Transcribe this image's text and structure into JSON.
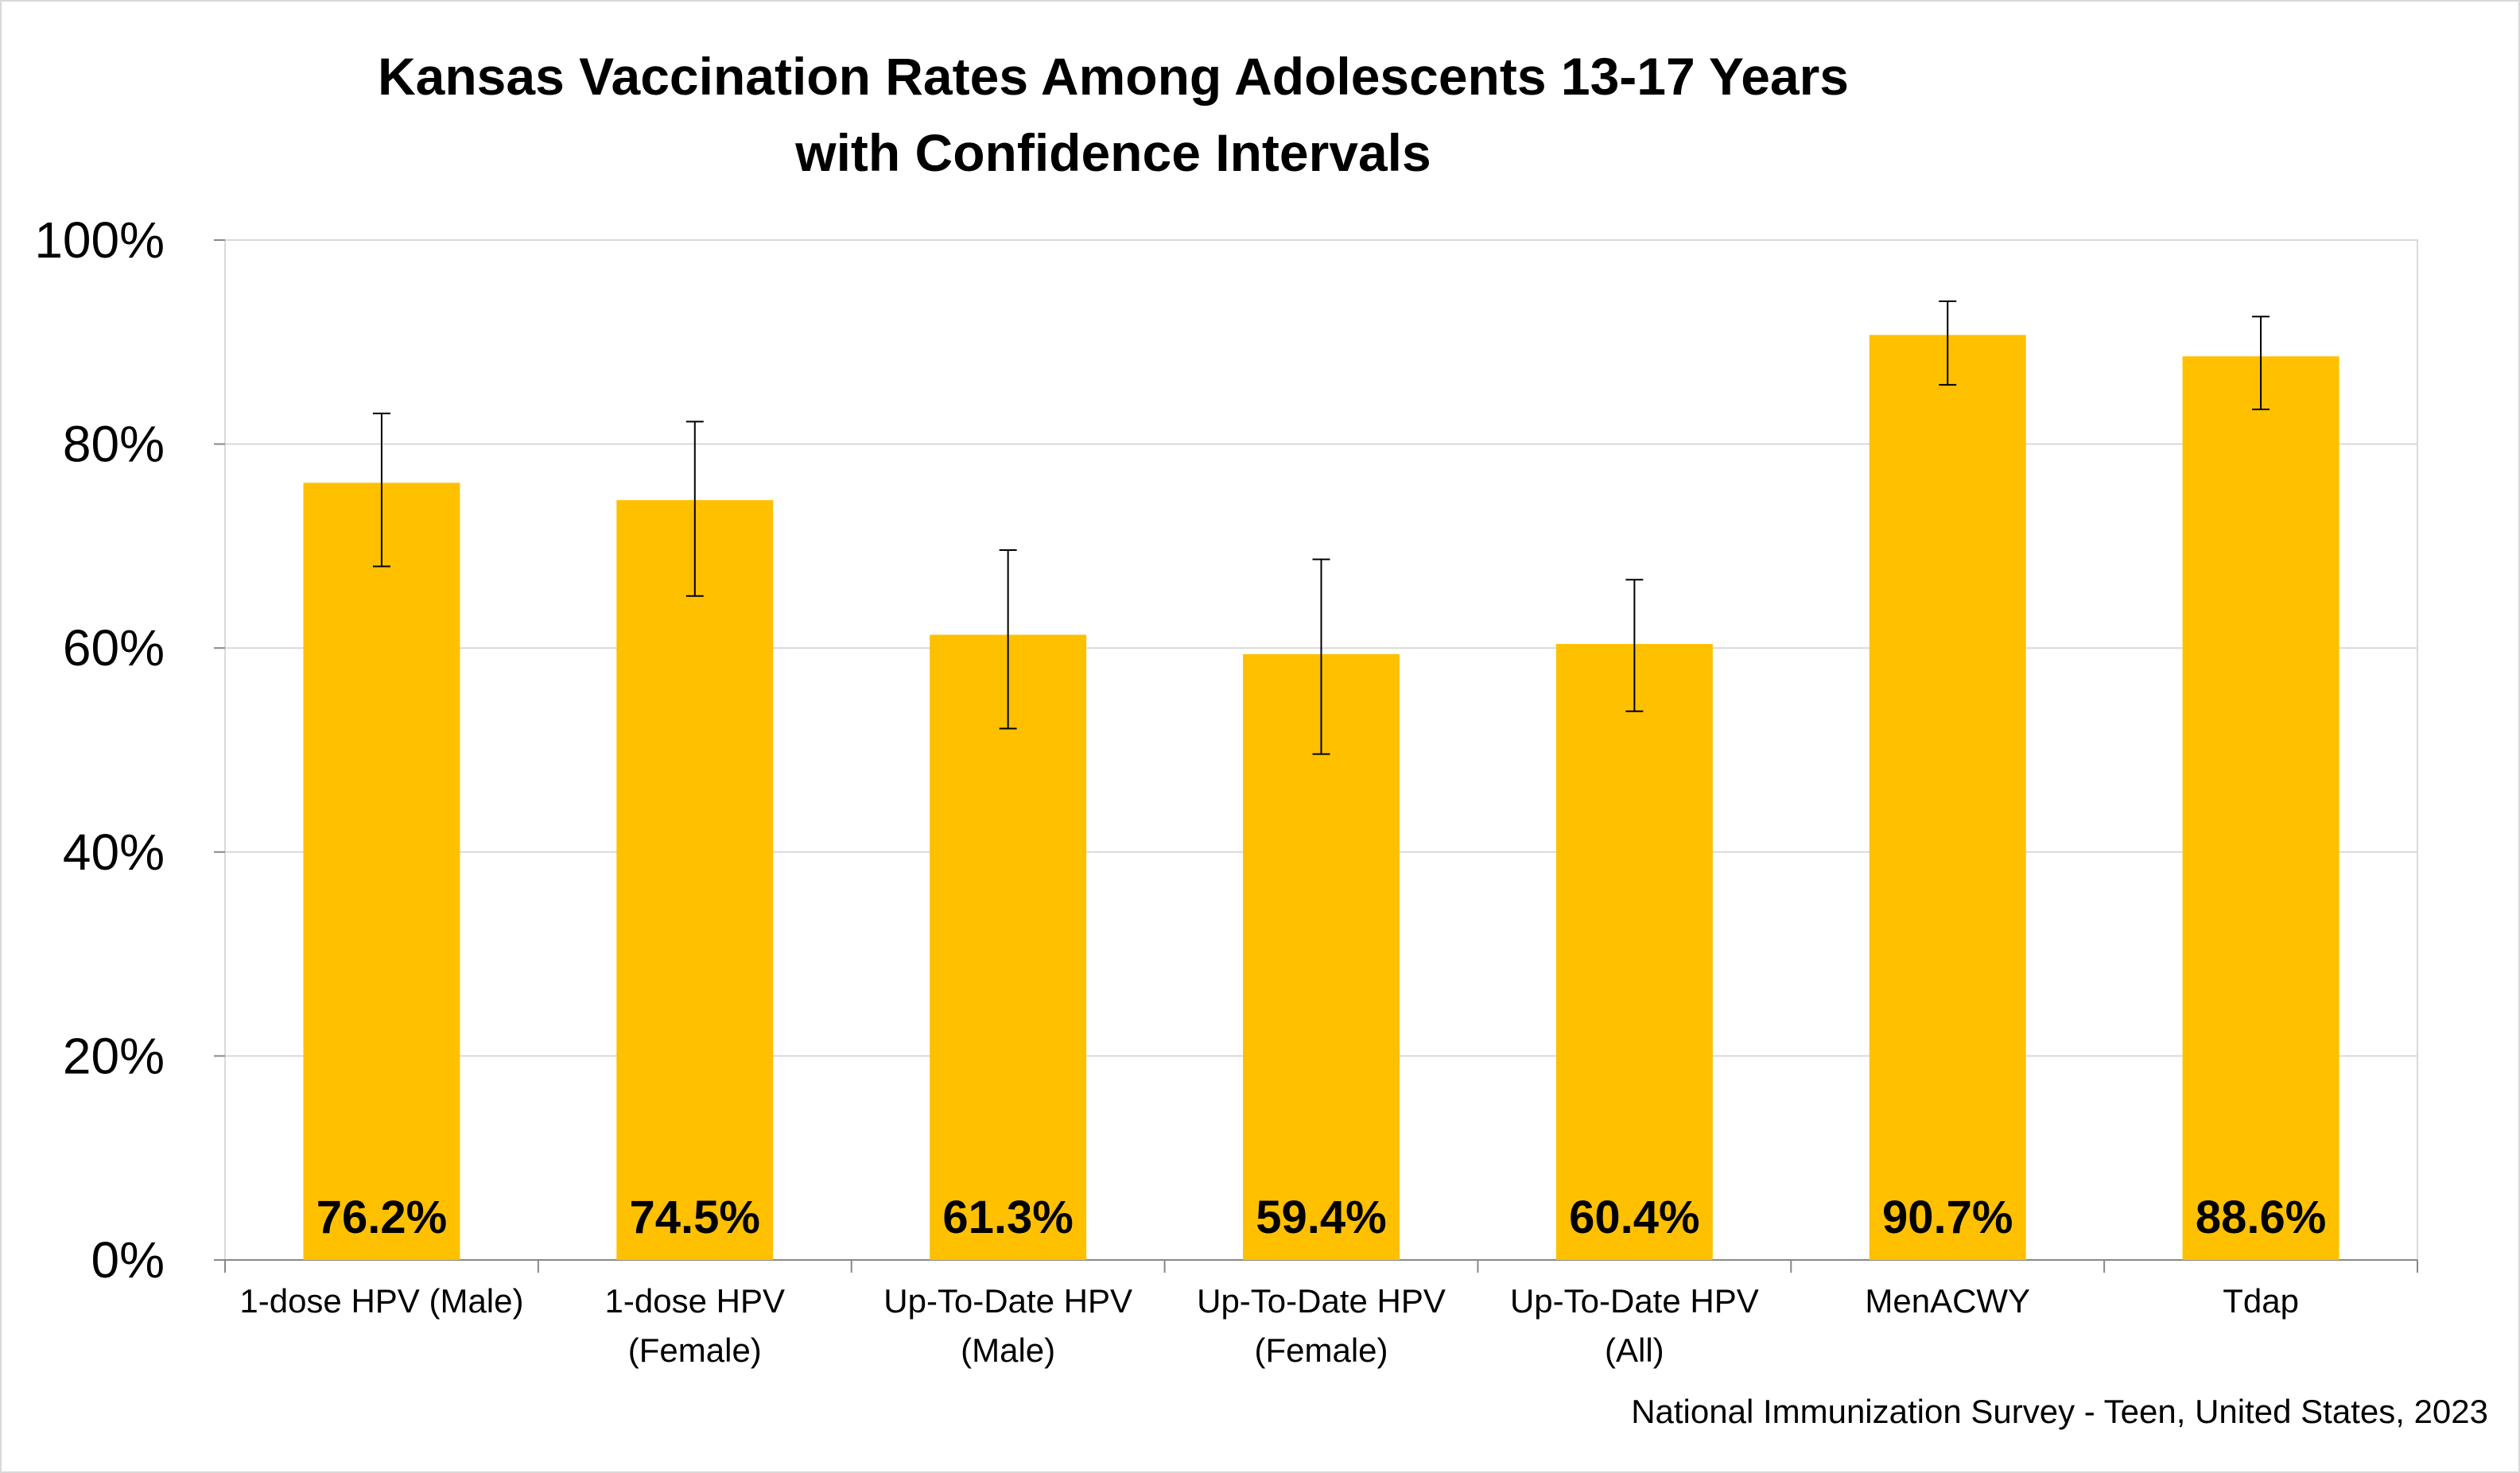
{
  "chart_data": {
    "type": "bar",
    "title": [
      "Kansas Vaccination Rates Among Adolescents 13-17 Years",
      "with Confidence Intervals"
    ],
    "categories": [
      [
        "1-dose HPV (Male)"
      ],
      [
        "1-dose HPV",
        "(Female)"
      ],
      [
        "Up-To-Date HPV",
        "(Male)"
      ],
      [
        "Up-To-Date HPV",
        "(Female)"
      ],
      [
        "Up-To-Date HPV",
        "(All)"
      ],
      [
        "MenACWY"
      ],
      [
        "Tdap"
      ]
    ],
    "values": [
      76.2,
      74.5,
      61.3,
      59.4,
      60.4,
      90.7,
      88.6
    ],
    "data_labels": [
      "76.2%",
      "74.5%",
      "61.3%",
      "59.4%",
      "60.4%",
      "90.7%",
      "88.6%"
    ],
    "ci_lower": [
      68.0,
      65.1,
      52.1,
      49.6,
      53.8,
      85.8,
      83.4
    ],
    "ci_upper": [
      83.0,
      82.2,
      69.6,
      68.7,
      66.7,
      94.0,
      92.5
    ],
    "ylim": [
      0,
      100
    ],
    "yticks": [
      0,
      20,
      40,
      60,
      80,
      100
    ],
    "ytick_labels": [
      "0%",
      "20%",
      "40%",
      "60%",
      "80%",
      "100%"
    ],
    "xlabel": "",
    "ylabel": "",
    "grid": true,
    "colors": {
      "bar": "#FFC000",
      "grid": "#D9D9D9",
      "error_bar": "#000000"
    }
  },
  "source_note": "National Immunization Survey - Teen, United States, 2023"
}
